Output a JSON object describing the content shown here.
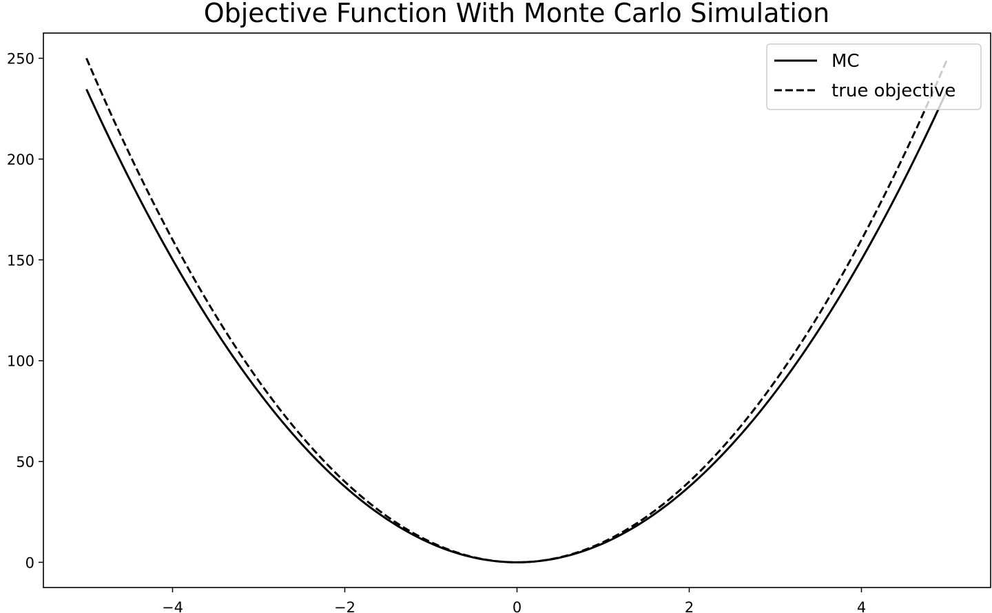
{
  "chart_data": {
    "type": "line",
    "title": "Objective Function With Monte Carlo Simulation",
    "xlabel": "",
    "ylabel": "",
    "xlim": [
      -5.5,
      5.5
    ],
    "ylim": [
      -12.5,
      262.5
    ],
    "x_ticks": [
      -4,
      -2,
      0,
      2,
      4
    ],
    "x_tick_labels": [
      "−4",
      "−2",
      "0",
      "2",
      "4"
    ],
    "y_ticks": [
      0,
      50,
      100,
      150,
      200,
      250
    ],
    "y_tick_labels": [
      "0",
      "50",
      "100",
      "150",
      "200",
      "250"
    ],
    "grid": false,
    "legend_position": "top-right",
    "x": [
      -5,
      -4,
      -3,
      -2,
      -1,
      0,
      1,
      2,
      3,
      4,
      5
    ],
    "series": [
      {
        "name": "MC",
        "style": "solid",
        "color": "#000000",
        "values": [
          235,
          150,
          84,
          37,
          9,
          0,
          9,
          37,
          84,
          150,
          235
        ]
      },
      {
        "name": "true objective",
        "style": "dashed",
        "color": "#000000",
        "values": [
          250,
          160,
          90,
          40,
          10,
          0,
          10,
          40,
          90,
          160,
          250
        ]
      }
    ]
  }
}
